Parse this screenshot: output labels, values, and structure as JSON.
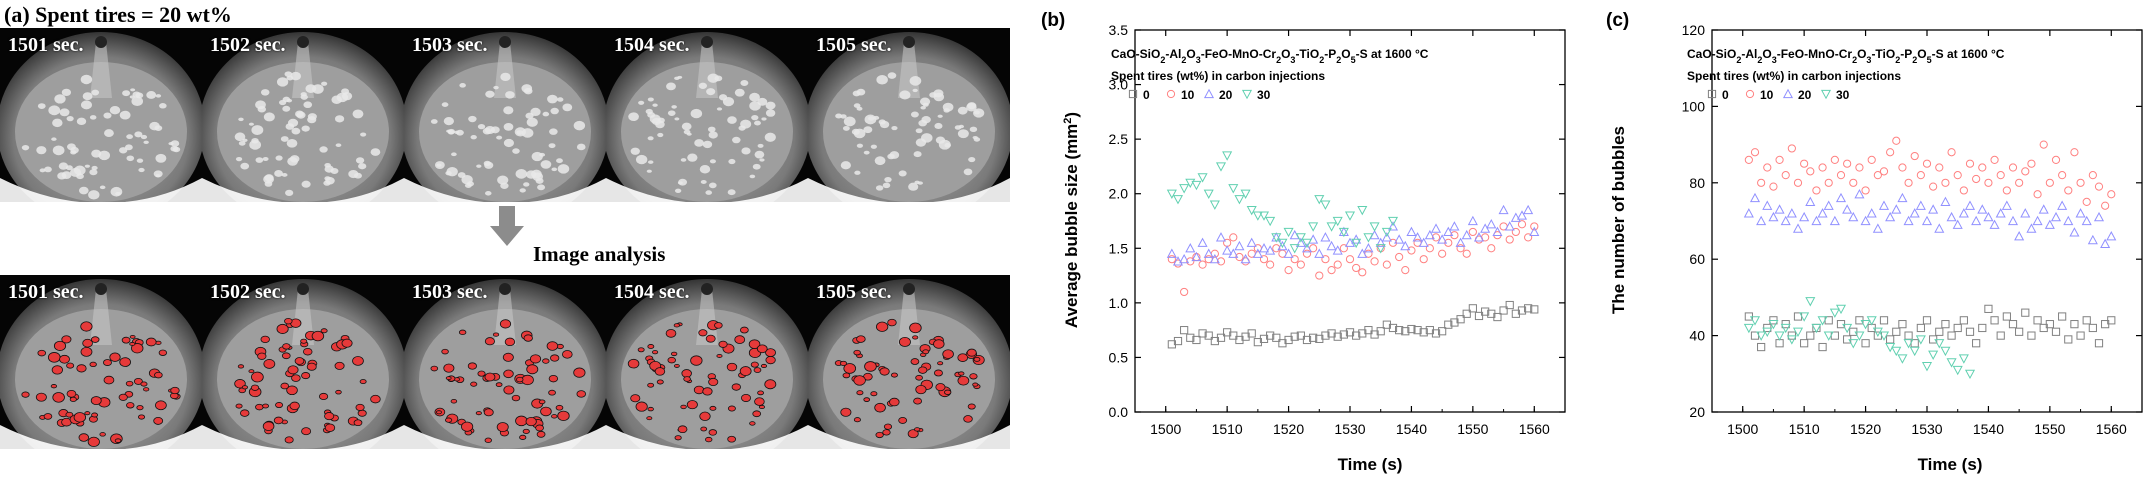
{
  "panel_a": {
    "title": "(a) Spent tires = 20 wt%",
    "frames": [
      "1501 sec.",
      "1502 sec.",
      "1503 sec.",
      "1504 sec.",
      "1505 sec."
    ],
    "analysis_label": "Image analysis"
  },
  "chart_data": [
    {
      "panel": "(b)",
      "type": "scatter",
      "title_plain": "CaO-SiO2-Al2O3-FeO-MnO-Cr2O3-TiO2-P2O5-S at 1600 °C",
      "legend_title": "Spent tires (wt%) in carbon injections",
      "xlabel": "Time (s)",
      "ylabel": "Average bubble size (mm2)",
      "xlim": [
        1495,
        1565
      ],
      "ylim": [
        0.0,
        3.5
      ],
      "xticks": [
        "1500",
        "1510",
        "1520",
        "1530",
        "1540",
        "1550",
        "1560"
      ],
      "yticks": [
        "0.0",
        "0.5",
        "1.0",
        "1.5",
        "2.0",
        "2.5",
        "3.0",
        "3.5"
      ],
      "legend_placement": "top-left",
      "series": [
        {
          "name": "0",
          "marker": "square",
          "color": "#808080",
          "x": [
            1501,
            1502,
            1503,
            1504,
            1505,
            1506,
            1507,
            1508,
            1509,
            1510,
            1511,
            1512,
            1513,
            1514,
            1515,
            1516,
            1517,
            1518,
            1519,
            1520,
            1521,
            1522,
            1523,
            1524,
            1525,
            1526,
            1527,
            1528,
            1529,
            1530,
            1531,
            1532,
            1533,
            1534,
            1535,
            1536,
            1537,
            1538,
            1539,
            1540,
            1541,
            1542,
            1543,
            1544,
            1545,
            1546,
            1547,
            1548,
            1549,
            1550,
            1551,
            1552,
            1553,
            1554,
            1555,
            1556,
            1557,
            1558,
            1559,
            1560
          ],
          "y": [
            0.62,
            0.65,
            0.75,
            0.68,
            0.66,
            0.72,
            0.7,
            0.65,
            0.68,
            0.73,
            0.7,
            0.66,
            0.69,
            0.72,
            0.64,
            0.67,
            0.7,
            0.68,
            0.63,
            0.66,
            0.69,
            0.7,
            0.66,
            0.68,
            0.67,
            0.7,
            0.72,
            0.69,
            0.71,
            0.73,
            0.7,
            0.72,
            0.75,
            0.71,
            0.74,
            0.8,
            0.77,
            0.75,
            0.74,
            0.76,
            0.75,
            0.73,
            0.75,
            0.72,
            0.74,
            0.8,
            0.82,
            0.85,
            0.9,
            0.95,
            0.88,
            0.92,
            0.9,
            0.87,
            0.93,
            0.98,
            0.9,
            0.93,
            0.95,
            0.94
          ]
        },
        {
          "name": "10",
          "marker": "circle",
          "color": "#ff8080",
          "x": [
            1501,
            1502,
            1503,
            1504,
            1505,
            1506,
            1507,
            1508,
            1509,
            1510,
            1511,
            1512,
            1513,
            1514,
            1515,
            1516,
            1517,
            1518,
            1519,
            1520,
            1521,
            1522,
            1523,
            1524,
            1525,
            1526,
            1527,
            1528,
            1529,
            1530,
            1531,
            1532,
            1533,
            1534,
            1535,
            1536,
            1537,
            1538,
            1539,
            1540,
            1541,
            1542,
            1543,
            1544,
            1545,
            1546,
            1547,
            1548,
            1549,
            1550,
            1551,
            1552,
            1553,
            1554,
            1555,
            1556,
            1557,
            1558,
            1559,
            1560
          ],
          "y": [
            1.4,
            1.36,
            1.1,
            1.38,
            1.42,
            1.35,
            1.4,
            1.45,
            1.38,
            1.55,
            1.6,
            1.42,
            1.38,
            1.45,
            1.5,
            1.4,
            1.35,
            1.5,
            1.45,
            1.3,
            1.4,
            1.35,
            1.45,
            1.5,
            1.25,
            1.4,
            1.3,
            1.35,
            1.5,
            1.4,
            1.32,
            1.28,
            1.45,
            1.38,
            1.5,
            1.35,
            1.55,
            1.42,
            1.3,
            1.48,
            1.55,
            1.4,
            1.5,
            1.6,
            1.45,
            1.55,
            1.62,
            1.5,
            1.45,
            1.65,
            1.58,
            1.6,
            1.5,
            1.62,
            1.7,
            1.58,
            1.65,
            1.72,
            1.6,
            1.7
          ]
        },
        {
          "name": "20",
          "marker": "triangle-up",
          "color": "#9090ff",
          "x": [
            1501,
            1502,
            1503,
            1504,
            1505,
            1506,
            1507,
            1508,
            1509,
            1510,
            1511,
            1512,
            1513,
            1514,
            1515,
            1516,
            1517,
            1518,
            1519,
            1520,
            1521,
            1522,
            1523,
            1524,
            1525,
            1526,
            1527,
            1528,
            1529,
            1530,
            1531,
            1532,
            1533,
            1534,
            1535,
            1536,
            1537,
            1538,
            1539,
            1540,
            1541,
            1542,
            1543,
            1544,
            1545,
            1546,
            1547,
            1548,
            1549,
            1550,
            1551,
            1552,
            1553,
            1554,
            1555,
            1556,
            1557,
            1558,
            1559,
            1560
          ],
          "y": [
            1.45,
            1.38,
            1.4,
            1.5,
            1.42,
            1.55,
            1.45,
            1.4,
            1.6,
            1.48,
            1.45,
            1.52,
            1.4,
            1.55,
            1.45,
            1.5,
            1.48,
            1.6,
            1.52,
            1.45,
            1.62,
            1.55,
            1.5,
            1.58,
            1.45,
            1.6,
            1.52,
            1.48,
            1.65,
            1.55,
            1.58,
            1.45,
            1.5,
            1.62,
            1.55,
            1.6,
            1.7,
            1.58,
            1.52,
            1.65,
            1.6,
            1.55,
            1.62,
            1.68,
            1.58,
            1.65,
            1.7,
            1.55,
            1.62,
            1.75,
            1.6,
            1.68,
            1.72,
            1.65,
            1.85,
            1.7,
            1.78,
            1.8,
            1.85,
            1.65
          ]
        },
        {
          "name": "30",
          "marker": "triangle-down",
          "color": "#60d0b0",
          "x": [
            1501,
            1502,
            1503,
            1504,
            1505,
            1506,
            1507,
            1508,
            1509,
            1510,
            1511,
            1512,
            1513,
            1514,
            1515,
            1516,
            1517,
            1518,
            1519,
            1520,
            1521,
            1522,
            1523,
            1524,
            1525,
            1526,
            1527,
            1528,
            1529,
            1530,
            1531,
            1532,
            1533,
            1534,
            1535,
            1536,
            1537
          ],
          "y": [
            2.0,
            1.95,
            2.05,
            2.1,
            2.08,
            2.15,
            2.0,
            1.9,
            2.25,
            2.35,
            2.05,
            1.95,
            2.0,
            1.85,
            1.8,
            1.8,
            1.75,
            1.6,
            1.55,
            1.65,
            1.5,
            1.6,
            1.55,
            1.7,
            1.95,
            1.9,
            1.7,
            1.75,
            1.65,
            1.8,
            1.55,
            1.85,
            1.6,
            1.7,
            1.5,
            1.65,
            1.75
          ]
        }
      ]
    },
    {
      "panel": "(c)",
      "type": "scatter",
      "title_plain": "CaO-SiO2-Al2O3-FeO-MnO-Cr2O3-TiO2-P2O5-S at 1600 °C",
      "legend_title": "Spent tires (wt%) in carbon injections",
      "xlabel": "Time (s)",
      "ylabel": "The number of bubbles",
      "xlim": [
        1495,
        1565
      ],
      "ylim": [
        20,
        120
      ],
      "xticks": [
        "1500",
        "1510",
        "1520",
        "1530",
        "1540",
        "1550",
        "1560"
      ],
      "yticks": [
        "20",
        "40",
        "60",
        "80",
        "100",
        "120"
      ],
      "legend_placement": "top-left",
      "series": [
        {
          "name": "0",
          "marker": "square",
          "color": "#808080",
          "x": [
            1501,
            1502,
            1503,
            1504,
            1505,
            1506,
            1507,
            1508,
            1509,
            1510,
            1511,
            1512,
            1513,
            1514,
            1515,
            1516,
            1517,
            1518,
            1519,
            1520,
            1521,
            1522,
            1523,
            1524,
            1525,
            1526,
            1527,
            1528,
            1529,
            1530,
            1531,
            1532,
            1533,
            1534,
            1535,
            1536,
            1537,
            1538,
            1539,
            1540,
            1541,
            1542,
            1543,
            1544,
            1545,
            1546,
            1547,
            1548,
            1549,
            1550,
            1551,
            1552,
            1553,
            1554,
            1555,
            1556,
            1557,
            1558,
            1559,
            1560
          ],
          "y": [
            45,
            40,
            37,
            42,
            44,
            38,
            43,
            40,
            45,
            38,
            40,
            42,
            37,
            44,
            40,
            43,
            39,
            41,
            44,
            38,
            42,
            40,
            44,
            39,
            41,
            43,
            40,
            38,
            42,
            44,
            39,
            41,
            43,
            40,
            42,
            44,
            41,
            38,
            42,
            47,
            44,
            40,
            45,
            43,
            41,
            46,
            40,
            44,
            42,
            43,
            41,
            45,
            39,
            43,
            40,
            44,
            42,
            38,
            43,
            44
          ]
        },
        {
          "name": "10",
          "marker": "circle",
          "color": "#ff8080",
          "x": [
            1501,
            1502,
            1503,
            1504,
            1505,
            1506,
            1507,
            1508,
            1509,
            1510,
            1511,
            1512,
            1513,
            1514,
            1515,
            1516,
            1517,
            1518,
            1519,
            1520,
            1521,
            1522,
            1523,
            1524,
            1525,
            1526,
            1527,
            1528,
            1529,
            1530,
            1531,
            1532,
            1533,
            1534,
            1535,
            1536,
            1537,
            1538,
            1539,
            1540,
            1541,
            1542,
            1543,
            1544,
            1545,
            1546,
            1547,
            1548,
            1549,
            1550,
            1551,
            1552,
            1553,
            1554,
            1555,
            1556,
            1557,
            1558,
            1559,
            1560
          ],
          "y": [
            86,
            88,
            80,
            84,
            79,
            86,
            82,
            89,
            80,
            85,
            83,
            78,
            84,
            80,
            86,
            82,
            85,
            80,
            84,
            78,
            86,
            82,
            83,
            88,
            91,
            84,
            80,
            87,
            82,
            85,
            79,
            84,
            80,
            88,
            82,
            78,
            85,
            81,
            84,
            80,
            86,
            82,
            78,
            84,
            80,
            83,
            85,
            77,
            90,
            80,
            86,
            82,
            78,
            88,
            80,
            75,
            82,
            79,
            74,
            77
          ]
        },
        {
          "name": "20",
          "marker": "triangle-up",
          "color": "#9090ff",
          "x": [
            1501,
            1502,
            1503,
            1504,
            1505,
            1506,
            1507,
            1508,
            1509,
            1510,
            1511,
            1512,
            1513,
            1514,
            1515,
            1516,
            1517,
            1518,
            1519,
            1520,
            1521,
            1522,
            1523,
            1524,
            1525,
            1526,
            1527,
            1528,
            1529,
            1530,
            1531,
            1532,
            1533,
            1534,
            1535,
            1536,
            1537,
            1538,
            1539,
            1540,
            1541,
            1542,
            1543,
            1544,
            1545,
            1546,
            1547,
            1548,
            1549,
            1550,
            1551,
            1552,
            1553,
            1554,
            1555,
            1556,
            1557,
            1558,
            1559,
            1560
          ],
          "y": [
            72,
            76,
            70,
            74,
            71,
            73,
            70,
            72,
            68,
            71,
            75,
            70,
            72,
            74,
            70,
            76,
            73,
            71,
            77,
            70,
            72,
            68,
            74,
            71,
            73,
            76,
            70,
            72,
            74,
            70,
            73,
            68,
            75,
            71,
            69,
            72,
            74,
            70,
            73,
            71,
            69,
            72,
            74,
            70,
            66,
            72,
            68,
            70,
            73,
            69,
            71,
            74,
            70,
            67,
            72,
            70,
            65,
            71,
            64,
            66
          ]
        },
        {
          "name": "30",
          "marker": "triangle-down",
          "color": "#60d0b0",
          "x": [
            1501,
            1502,
            1503,
            1504,
            1505,
            1506,
            1507,
            1508,
            1509,
            1510,
            1511,
            1512,
            1513,
            1514,
            1515,
            1516,
            1517,
            1518,
            1519,
            1520,
            1521,
            1522,
            1523,
            1524,
            1525,
            1526,
            1527,
            1528,
            1529,
            1530,
            1531,
            1532,
            1533,
            1534,
            1535,
            1536,
            1537
          ],
          "y": [
            42,
            44,
            40,
            41,
            43,
            40,
            42,
            39,
            41,
            45,
            49,
            42,
            44,
            40,
            46,
            47,
            42,
            38,
            40,
            43,
            44,
            41,
            40,
            37,
            36,
            34,
            38,
            36,
            39,
            32,
            35,
            38,
            36,
            33,
            31,
            34,
            30
          ]
        }
      ]
    }
  ]
}
